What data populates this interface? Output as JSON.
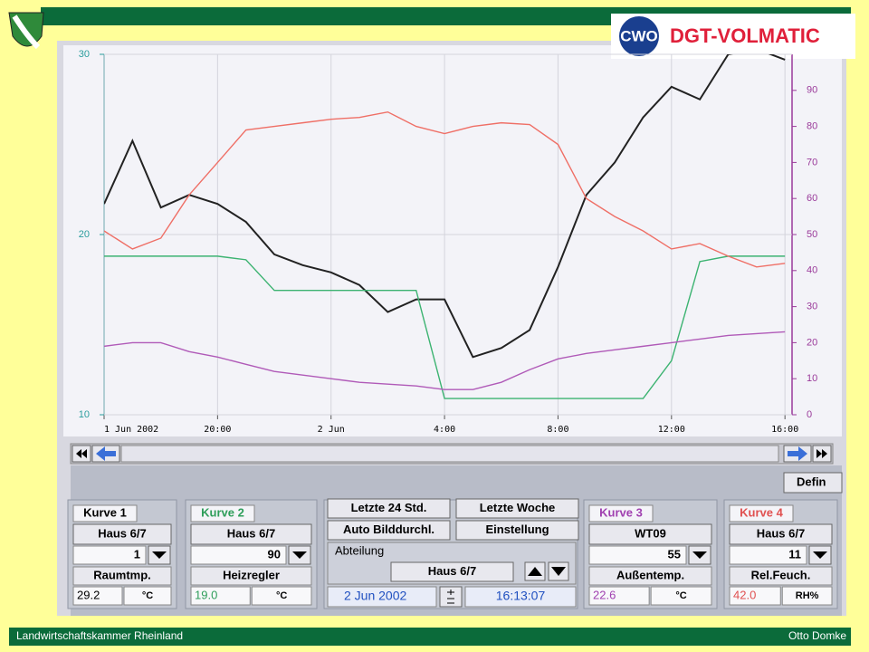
{
  "logo": {
    "mark": "CWO",
    "name": "DGT-VOLMATIC"
  },
  "footer": {
    "left": "Landwirtschaftskammer Rheinland",
    "right": "Otto Domke"
  },
  "chart_data": {
    "type": "line",
    "x": [
      0,
      1,
      2,
      3,
      4,
      5,
      6,
      7,
      8,
      9,
      10,
      11,
      12,
      13,
      14,
      15,
      16,
      17,
      18,
      19,
      20,
      21,
      22,
      23,
      24
    ],
    "xlim": [
      0,
      24.25
    ],
    "xticks": [
      {
        "value": 0,
        "label": "1 Jun 2002"
      },
      {
        "value": 4,
        "label": "20:00"
      },
      {
        "value": 8,
        "label": "2 Jun"
      },
      {
        "value": 12,
        "label": "4:00"
      },
      {
        "value": 16,
        "label": "8:00"
      },
      {
        "value": 20,
        "label": "12:00"
      },
      {
        "value": 24,
        "label": "16:00"
      }
    ],
    "ylim": [
      10,
      30
    ],
    "yticks": [
      10,
      20,
      30
    ],
    "y2lim": [
      0,
      100
    ],
    "y2ticks": [
      0,
      10,
      20,
      30,
      40,
      50,
      60,
      70,
      80,
      90
    ],
    "grid": true,
    "series": [
      {
        "color": "#222222",
        "values": [
          21.7,
          25.2,
          21.5,
          22.2,
          21.7,
          20.7,
          18.9,
          18.3,
          17.9,
          17.2,
          15.7,
          16.4,
          16.4,
          13.2,
          13.7,
          14.7,
          18.2,
          22.2,
          24.0,
          26.5,
          28.2,
          27.5,
          30.0,
          30.3,
          29.7
        ]
      },
      {
        "color": "#3cb371",
        "values": [
          18.8,
          18.8,
          18.8,
          18.8,
          18.8,
          18.6,
          16.9,
          16.9,
          16.9,
          16.9,
          16.9,
          16.9,
          10.9,
          10.9,
          10.9,
          10.9,
          10.9,
          10.9,
          10.9,
          10.9,
          13.0,
          18.5,
          18.8,
          18.8,
          18.8
        ]
      },
      {
        "color": "#b05ab8",
        "axis": "y2",
        "values": [
          19,
          20,
          20,
          17.5,
          16,
          14,
          12,
          11,
          10,
          9,
          8.5,
          8,
          7,
          7,
          9,
          12.5,
          15.5,
          17,
          18,
          19,
          20,
          21,
          22,
          22.5,
          23
        ]
      },
      {
        "color": "#ef6f66",
        "axis": "y2",
        "values": [
          51,
          46,
          49,
          61,
          70,
          79,
          80,
          81,
          82,
          82.5,
          84,
          80,
          78,
          80,
          81,
          80.5,
          75,
          60,
          55,
          51,
          46,
          47.5,
          44,
          41,
          42
        ]
      }
    ]
  },
  "define_button": "Defin",
  "panels": [
    {
      "title": "Kurve 1",
      "color": "#000000",
      "house": "Haus 6/7",
      "number": 1,
      "name": "Raumtmp.",
      "value": "29.2",
      "unit": "°C"
    },
    {
      "title": "Kurve 2",
      "color": "#2e9e5a",
      "house": "Haus 6/7",
      "number": 90,
      "name": "Heizregler",
      "value": "19.0",
      "unit": "°C"
    },
    {
      "title": "Kurve 3",
      "color": "#a040b0",
      "house": "WT09",
      "number": 55,
      "name": "Außentemp.",
      "value": "22.6",
      "unit": "°C"
    },
    {
      "title": "Kurve 4",
      "color": "#e05050",
      "house": "Haus 6/7",
      "number": 11,
      "name": "Rel.Feuch.",
      "value": "42.0",
      "unit": "RH%"
    }
  ],
  "controls": {
    "buttons": [
      "Letzte 24 Std.",
      "Letzte Woche",
      "Auto Bilddurchl.",
      "Einstellung"
    ],
    "department_label": "Abteilung",
    "department": "Haus 6/7",
    "date": "2 Jun 2002",
    "time": "16:13:07"
  }
}
